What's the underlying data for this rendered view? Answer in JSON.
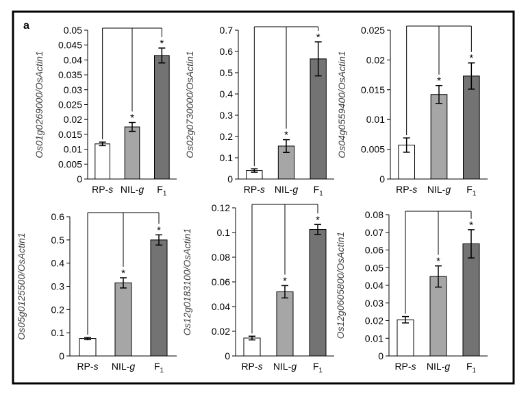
{
  "panel_label": "a",
  "colors": {
    "rp_s": "#ffffff",
    "nil_g": "#a6a6a6",
    "f1": "#737373",
    "frame": "#000000"
  },
  "chart_data": [
    {
      "type": "bar",
      "ylabel": "Os01g0269000/OsActin1",
      "categories": [
        {
          "base": "RP-",
          "ital": "s",
          "sub": ""
        },
        {
          "base": "NIL-",
          "ital": "g",
          "sub": ""
        },
        {
          "base": "F",
          "ital": "",
          "sub": "1"
        }
      ],
      "values": [
        0.0118,
        0.0175,
        0.0415
      ],
      "errors": [
        0.0006,
        0.0015,
        0.0025
      ],
      "significance": [
        "",
        "*",
        "*"
      ],
      "ylim": [
        0,
        0.05
      ],
      "ticks": [
        "0",
        "0.005",
        "0.01",
        "0.015",
        "0.02",
        "0.025",
        "0.03",
        "0.035",
        "0.04",
        "0.045",
        "0.05"
      ]
    },
    {
      "type": "bar",
      "ylabel": "Os02g0730000/OsActin1",
      "categories": [
        {
          "base": "RP-",
          "ital": "s",
          "sub": ""
        },
        {
          "base": "NIL-",
          "ital": "g",
          "sub": ""
        },
        {
          "base": "F",
          "ital": "",
          "sub": "1"
        }
      ],
      "values": [
        0.04,
        0.155,
        0.565
      ],
      "errors": [
        0.008,
        0.03,
        0.08
      ],
      "significance": [
        "",
        "*",
        "*"
      ],
      "ylim": [
        0,
        0.7
      ],
      "ticks": [
        "0",
        "0.1",
        "0.2",
        "0.3",
        "0.4",
        "0.5",
        "0.6",
        "0.7"
      ]
    },
    {
      "type": "bar",
      "ylabel": "Os04g0559400/OsActin1",
      "categories": [
        {
          "base": "RP-",
          "ital": "s",
          "sub": ""
        },
        {
          "base": "NIL-",
          "ital": "g",
          "sub": ""
        },
        {
          "base": "F",
          "ital": "",
          "sub": "1"
        }
      ],
      "values": [
        0.0057,
        0.0142,
        0.0173
      ],
      "errors": [
        0.0012,
        0.0015,
        0.0022
      ],
      "significance": [
        "",
        "*",
        "*"
      ],
      "ylim": [
        0,
        0.025
      ],
      "ticks": [
        "0",
        "0.005",
        "0.01",
        "0.015",
        "0.02",
        "0.025"
      ]
    },
    {
      "type": "bar",
      "ylabel": "Os05g0125500/OsActin1",
      "categories": [
        {
          "base": "RP-",
          "ital": "s",
          "sub": ""
        },
        {
          "base": "NIL-",
          "ital": "g",
          "sub": ""
        },
        {
          "base": "F",
          "ital": "",
          "sub": "1"
        }
      ],
      "values": [
        0.075,
        0.315,
        0.5
      ],
      "errors": [
        0.005,
        0.022,
        0.022
      ],
      "significance": [
        "",
        "*",
        "*"
      ],
      "ylim": [
        0,
        0.6
      ],
      "ticks": [
        "0",
        "0.1",
        "0.2",
        "0.3",
        "0.4",
        "0.5",
        "0.6"
      ]
    },
    {
      "type": "bar",
      "ylabel": "Os12g0183100/OsActin1",
      "categories": [
        {
          "base": "RP-",
          "ital": "s",
          "sub": ""
        },
        {
          "base": "NIL-",
          "ital": "g",
          "sub": ""
        },
        {
          "base": "F",
          "ital": "",
          "sub": "1"
        }
      ],
      "values": [
        0.0145,
        0.052,
        0.1025
      ],
      "errors": [
        0.0015,
        0.005,
        0.004
      ],
      "significance": [
        "",
        "*",
        "*"
      ],
      "ylim": [
        0,
        0.12
      ],
      "ticks": [
        "0",
        "0.02",
        "0.04",
        "0.06",
        "0.08",
        "0.1",
        "0.12"
      ]
    },
    {
      "type": "bar",
      "ylabel": "Os12g0605800/OsActin1",
      "categories": [
        {
          "base": "RP-",
          "ital": "s",
          "sub": ""
        },
        {
          "base": "NIL-",
          "ital": "g",
          "sub": ""
        },
        {
          "base": "F",
          "ital": "",
          "sub": "1"
        }
      ],
      "values": [
        0.0205,
        0.045,
        0.0635
      ],
      "errors": [
        0.0018,
        0.006,
        0.008
      ],
      "significance": [
        "",
        "*",
        "*"
      ],
      "ylim": [
        0,
        0.08
      ],
      "ticks": [
        "0",
        "0.01",
        "0.02",
        "0.03",
        "0.04",
        "0.05",
        "0.06",
        "0.07",
        "0.08"
      ]
    }
  ]
}
